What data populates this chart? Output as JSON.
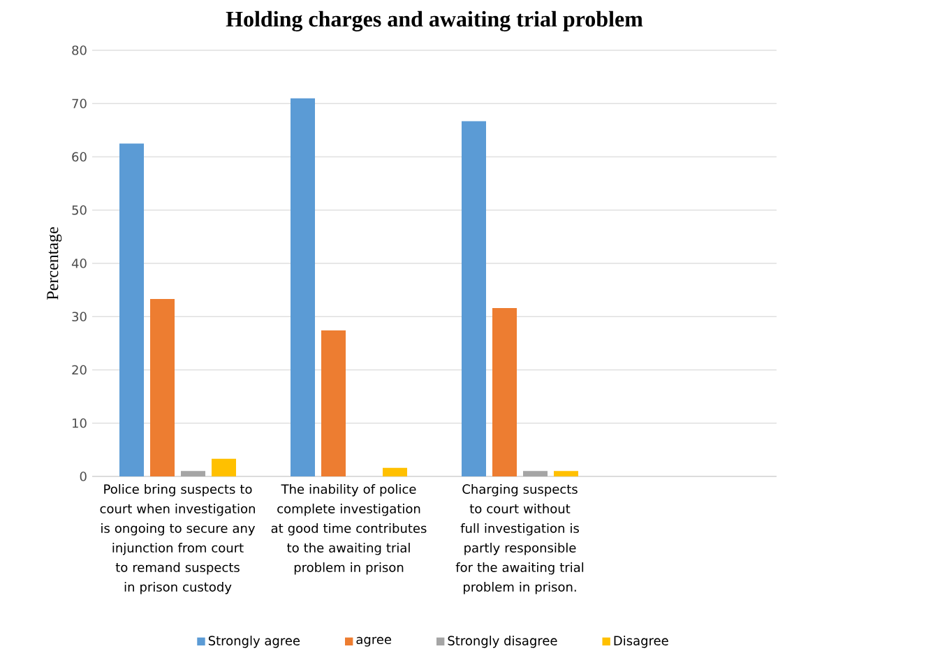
{
  "chart_data": {
    "type": "bar",
    "title": "Holding charges and awaiting trial problem",
    "ylabel": "Percentage",
    "categories": [
      "Police bring suspects to court when investigation is ongoing to secure any injunction from court to remand suspects in prison custody",
      "The inability of police complete investigation at good time contributes to the awaiting trial problem in prison",
      "Charging suspects to court without full investigation is partly responsible for the awaiting trial problem in prison.",
      null
    ],
    "series": [
      {
        "name": "Strongly agree",
        "color": "#5b9bd5",
        "values": [
          62.5,
          71,
          66.7,
          null
        ]
      },
      {
        "name": "agree",
        "color": "#ed7d31",
        "values": [
          33.3,
          27.4,
          31.6,
          null
        ]
      },
      {
        "name": "Strongly disagree",
        "color": "#a5a5a5",
        "values": [
          1,
          null,
          1,
          null
        ]
      },
      {
        "name": "Disagree",
        "color": "#ffc000",
        "values": [
          3.3,
          1.6,
          1,
          null
        ]
      }
    ],
    "ylim": [
      0,
      80
    ],
    "yticks": [
      0,
      10,
      20,
      30,
      40,
      50,
      60,
      70,
      80
    ],
    "grid": "y",
    "legend": "bottom"
  }
}
